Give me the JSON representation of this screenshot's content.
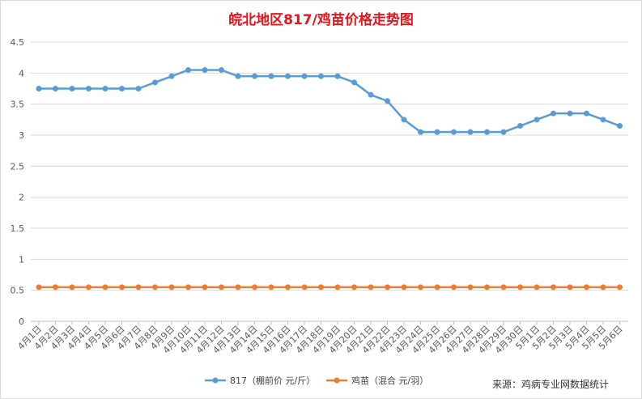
{
  "chart_data": {
    "type": "line",
    "title": "皖北地区817/鸡苗价格走势图",
    "categories": [
      "4月1日",
      "4月2日",
      "4月3日",
      "4月4日",
      "4月5日",
      "4月6日",
      "4月7日",
      "4月8日",
      "4月9日",
      "4月10日",
      "4月11日",
      "4月12日",
      "4月13日",
      "4月14日",
      "4月15日",
      "4月16日",
      "4月17日",
      "4月18日",
      "4月19日",
      "4月20日",
      "4月21日",
      "4月22日",
      "4月23日",
      "4月24日",
      "4月25日",
      "4月26日",
      "4月27日",
      "4月28日",
      "4月29日",
      "4月30日",
      "5月1日",
      "5月2日",
      "5月3日",
      "5月4日",
      "5月5日",
      "5月6日"
    ],
    "series": [
      {
        "name": "817（棚前价 元/斤）",
        "color": "#5b9bd5",
        "values": [
          3.75,
          3.75,
          3.75,
          3.75,
          3.75,
          3.75,
          3.75,
          3.85,
          3.95,
          4.05,
          4.05,
          4.05,
          3.95,
          3.95,
          3.95,
          3.95,
          3.95,
          3.95,
          3.95,
          3.85,
          3.65,
          3.55,
          3.25,
          3.05,
          3.05,
          3.05,
          3.05,
          3.05,
          3.05,
          3.15,
          3.25,
          3.35,
          3.35,
          3.35,
          3.25,
          3.15
        ]
      },
      {
        "name": "鸡苗（混合 元/羽）",
        "color": "#ed7d31",
        "values": [
          0.55,
          0.55,
          0.55,
          0.55,
          0.55,
          0.55,
          0.55,
          0.55,
          0.55,
          0.55,
          0.55,
          0.55,
          0.55,
          0.55,
          0.55,
          0.55,
          0.55,
          0.55,
          0.55,
          0.55,
          0.55,
          0.55,
          0.55,
          0.55,
          0.55,
          0.55,
          0.55,
          0.55,
          0.55,
          0.55,
          0.55,
          0.55,
          0.55,
          0.55,
          0.55,
          0.55
        ]
      }
    ],
    "ylim": [
      0,
      4.5
    ],
    "yticks": [
      "0",
      "0.5",
      "1",
      "1.5",
      "2",
      "2.5",
      "3",
      "3.5",
      "4",
      "4.5"
    ],
    "grid": true,
    "legend": "bottom",
    "source": "来源：鸡病专业网数据统计"
  }
}
